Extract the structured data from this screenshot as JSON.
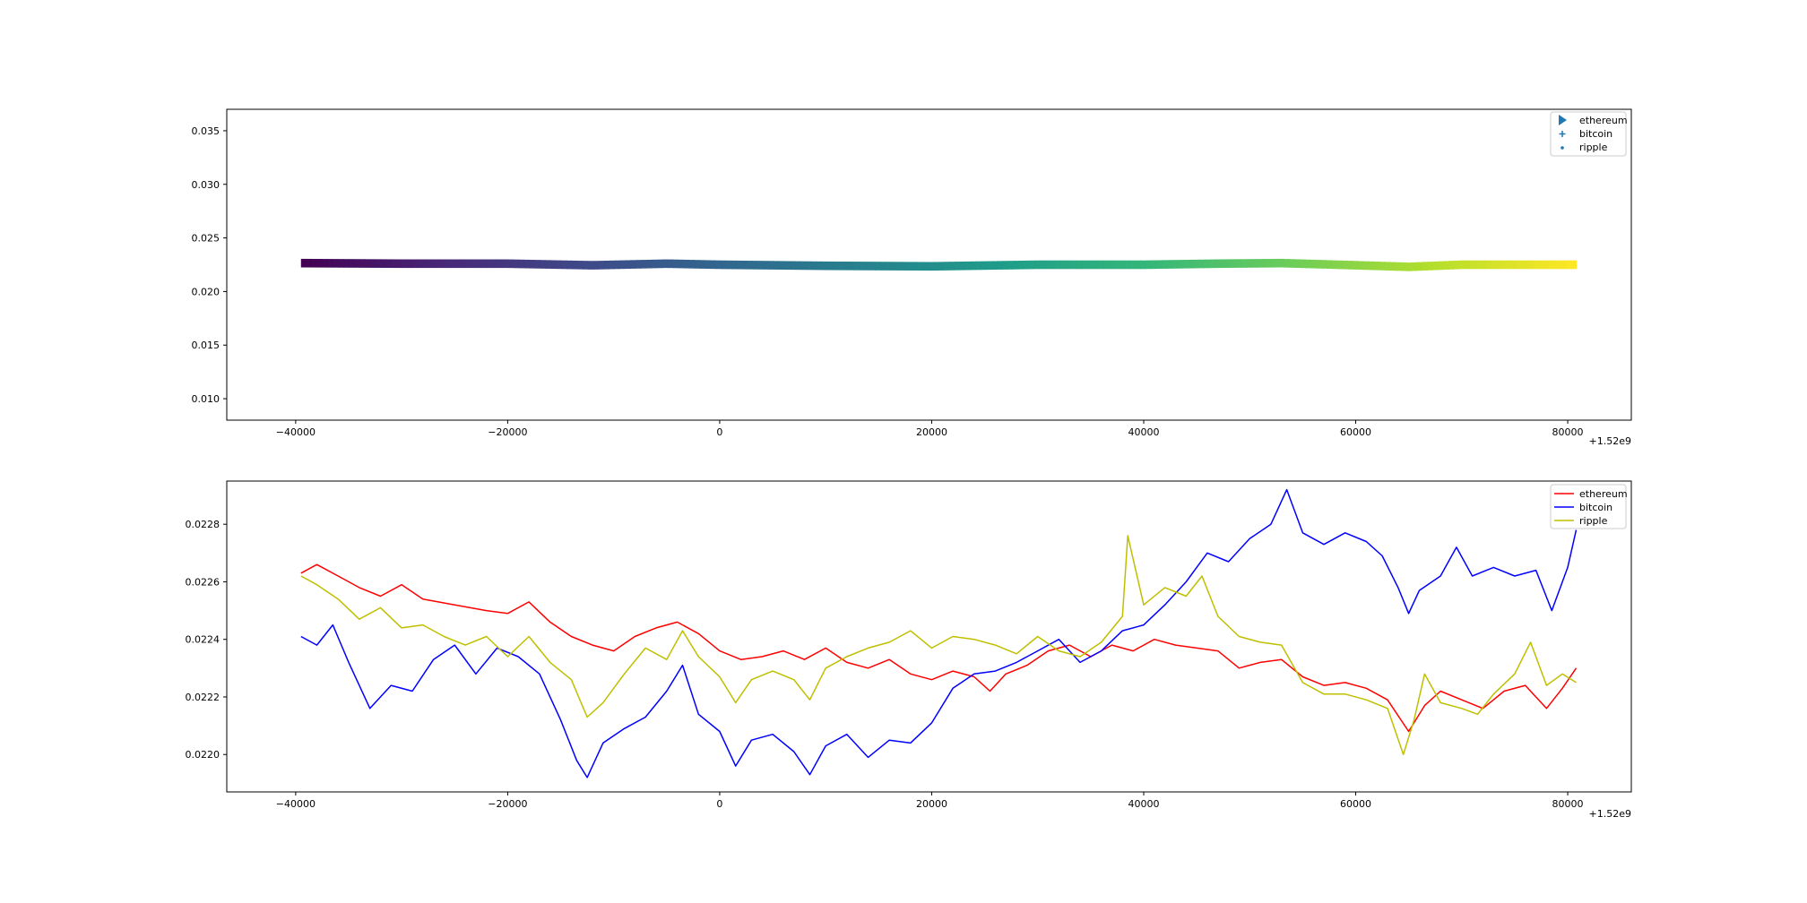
{
  "chart_data": [
    {
      "type": "scatter",
      "title": "",
      "xlabel": "",
      "ylabel": "",
      "x_offset_label": "+1.52e9",
      "xlim": [
        -46500,
        86000
      ],
      "ylim": [
        0.008,
        0.037
      ],
      "x_ticks": [
        -40000,
        -20000,
        0,
        20000,
        40000,
        60000,
        80000
      ],
      "x_tick_labels": [
        "−40000",
        "−20000",
        "0",
        "20000",
        "40000",
        "60000",
        "80000"
      ],
      "y_ticks": [
        0.01,
        0.015,
        0.02,
        0.025,
        0.03,
        0.035
      ],
      "y_tick_labels": [
        "0.010",
        "0.015",
        "0.020",
        "0.025",
        "0.030",
        "0.035"
      ],
      "grid": false,
      "legend_position": "top-right",
      "colormap": "viridis",
      "legend": [
        {
          "name": "ethereum",
          "marker": "triangle-right",
          "color": "#1f77b4"
        },
        {
          "name": "bitcoin",
          "marker": "plus",
          "color": "#1f77b4"
        },
        {
          "name": "ripple",
          "marker": "dot",
          "color": "#1f77b4"
        }
      ],
      "x_range": [
        -39500,
        80800
      ],
      "band_center": [
        [
          -39500,
          0.02265
        ],
        [
          -30000,
          0.0226
        ],
        [
          -20000,
          0.0226
        ],
        [
          -12000,
          0.02245
        ],
        [
          -5000,
          0.0226
        ],
        [
          0,
          0.0225
        ],
        [
          10000,
          0.0224
        ],
        [
          20000,
          0.02235
        ],
        [
          30000,
          0.0225
        ],
        [
          40000,
          0.0225
        ],
        [
          47000,
          0.0226
        ],
        [
          53000,
          0.02265
        ],
        [
          60000,
          0.02245
        ],
        [
          65000,
          0.0223
        ],
        [
          70000,
          0.0225
        ],
        [
          80800,
          0.0225
        ]
      ],
      "band_half_width": 0.0004
    },
    {
      "type": "line",
      "title": "",
      "xlabel": "",
      "ylabel": "",
      "x_offset_label": "+1.52e9",
      "xlim": [
        -46500,
        86000
      ],
      "ylim": [
        0.02187,
        0.02295
      ],
      "x_ticks": [
        -40000,
        -20000,
        0,
        20000,
        40000,
        60000,
        80000
      ],
      "x_tick_labels": [
        "−40000",
        "−20000",
        "0",
        "20000",
        "40000",
        "60000",
        "80000"
      ],
      "y_ticks": [
        0.022,
        0.0222,
        0.0224,
        0.0226,
        0.0228
      ],
      "y_tick_labels": [
        "0.0220",
        "0.0222",
        "0.0224",
        "0.0226",
        "0.0228"
      ],
      "grid": false,
      "legend_position": "top-right",
      "series": [
        {
          "name": "ethereum",
          "color": "#ff0000",
          "points": [
            [
              -39500,
              0.02263
            ],
            [
              -38000,
              0.02266
            ],
            [
              -36000,
              0.02262
            ],
            [
              -34000,
              0.02258
            ],
            [
              -32000,
              0.02255
            ],
            [
              -30000,
              0.02259
            ],
            [
              -28000,
              0.02254
            ],
            [
              -25000,
              0.02252
            ],
            [
              -22000,
              0.0225
            ],
            [
              -20000,
              0.02249
            ],
            [
              -18000,
              0.02253
            ],
            [
              -16000,
              0.02246
            ],
            [
              -14000,
              0.02241
            ],
            [
              -12000,
              0.02238
            ],
            [
              -10000,
              0.02236
            ],
            [
              -8000,
              0.02241
            ],
            [
              -6000,
              0.02244
            ],
            [
              -4000,
              0.02246
            ],
            [
              -2000,
              0.02242
            ],
            [
              0,
              0.02236
            ],
            [
              2000,
              0.02233
            ],
            [
              4000,
              0.02234
            ],
            [
              6000,
              0.02236
            ],
            [
              8000,
              0.02233
            ],
            [
              10000,
              0.02237
            ],
            [
              12000,
              0.02232
            ],
            [
              14000,
              0.0223
            ],
            [
              16000,
              0.02233
            ],
            [
              18000,
              0.02228
            ],
            [
              20000,
              0.02226
            ],
            [
              22000,
              0.02229
            ],
            [
              24000,
              0.02227
            ],
            [
              25500,
              0.02222
            ],
            [
              27000,
              0.02228
            ],
            [
              29000,
              0.02231
            ],
            [
              31000,
              0.02236
            ],
            [
              33000,
              0.02238
            ],
            [
              35000,
              0.02234
            ],
            [
              37000,
              0.02238
            ],
            [
              39000,
              0.02236
            ],
            [
              41000,
              0.0224
            ],
            [
              43000,
              0.02238
            ],
            [
              45000,
              0.02237
            ],
            [
              47000,
              0.02236
            ],
            [
              49000,
              0.0223
            ],
            [
              51000,
              0.02232
            ],
            [
              53000,
              0.02233
            ],
            [
              55000,
              0.02227
            ],
            [
              57000,
              0.02224
            ],
            [
              59000,
              0.02225
            ],
            [
              61000,
              0.02223
            ],
            [
              63000,
              0.02219
            ],
            [
              65000,
              0.02208
            ],
            [
              66500,
              0.02217
            ],
            [
              68000,
              0.02222
            ],
            [
              70000,
              0.02219
            ],
            [
              72000,
              0.02216
            ],
            [
              74000,
              0.02222
            ],
            [
              76000,
              0.02224
            ],
            [
              78000,
              0.02216
            ],
            [
              79500,
              0.02223
            ],
            [
              80800,
              0.0223
            ]
          ]
        },
        {
          "name": "bitcoin",
          "color": "#0000ff",
          "points": [
            [
              -39500,
              0.02241
            ],
            [
              -38000,
              0.02238
            ],
            [
              -36500,
              0.02245
            ],
            [
              -35000,
              0.02232
            ],
            [
              -33000,
              0.02216
            ],
            [
              -31000,
              0.02224
            ],
            [
              -29000,
              0.02222
            ],
            [
              -27000,
              0.02233
            ],
            [
              -25000,
              0.02238
            ],
            [
              -23000,
              0.02228
            ],
            [
              -21000,
              0.02237
            ],
            [
              -19000,
              0.02234
            ],
            [
              -17000,
              0.02228
            ],
            [
              -15000,
              0.02212
            ],
            [
              -13500,
              0.02198
            ],
            [
              -12500,
              0.02192
            ],
            [
              -11000,
              0.02204
            ],
            [
              -9000,
              0.02209
            ],
            [
              -7000,
              0.02213
            ],
            [
              -5000,
              0.02222
            ],
            [
              -3500,
              0.02231
            ],
            [
              -2000,
              0.02214
            ],
            [
              0,
              0.02208
            ],
            [
              1500,
              0.02196
            ],
            [
              3000,
              0.02205
            ],
            [
              5000,
              0.02207
            ],
            [
              7000,
              0.02201
            ],
            [
              8500,
              0.02193
            ],
            [
              10000,
              0.02203
            ],
            [
              12000,
              0.02207
            ],
            [
              14000,
              0.02199
            ],
            [
              16000,
              0.02205
            ],
            [
              18000,
              0.02204
            ],
            [
              20000,
              0.02211
            ],
            [
              22000,
              0.02223
            ],
            [
              24000,
              0.02228
            ],
            [
              26000,
              0.02229
            ],
            [
              28000,
              0.02232
            ],
            [
              30000,
              0.02236
            ],
            [
              32000,
              0.0224
            ],
            [
              34000,
              0.02232
            ],
            [
              36000,
              0.02236
            ],
            [
              38000,
              0.02243
            ],
            [
              40000,
              0.02245
            ],
            [
              42000,
              0.02252
            ],
            [
              44000,
              0.0226
            ],
            [
              46000,
              0.0227
            ],
            [
              48000,
              0.02267
            ],
            [
              50000,
              0.02275
            ],
            [
              52000,
              0.0228
            ],
            [
              53500,
              0.02292
            ],
            [
              55000,
              0.02277
            ],
            [
              57000,
              0.02273
            ],
            [
              59000,
              0.02277
            ],
            [
              61000,
              0.02274
            ],
            [
              62500,
              0.02269
            ],
            [
              64000,
              0.02258
            ],
            [
              65000,
              0.02249
            ],
            [
              66000,
              0.02257
            ],
            [
              68000,
              0.02262
            ],
            [
              69500,
              0.02272
            ],
            [
              71000,
              0.02262
            ],
            [
              73000,
              0.02265
            ],
            [
              75000,
              0.02262
            ],
            [
              77000,
              0.02264
            ],
            [
              78500,
              0.0225
            ],
            [
              80000,
              0.02265
            ],
            [
              80800,
              0.02278
            ]
          ]
        },
        {
          "name": "ripple",
          "color": "#bfbf00",
          "points": [
            [
              -39500,
              0.02262
            ],
            [
              -38000,
              0.02259
            ],
            [
              -36000,
              0.02254
            ],
            [
              -34000,
              0.02247
            ],
            [
              -32000,
              0.02251
            ],
            [
              -30000,
              0.02244
            ],
            [
              -28000,
              0.02245
            ],
            [
              -26000,
              0.02241
            ],
            [
              -24000,
              0.02238
            ],
            [
              -22000,
              0.02241
            ],
            [
              -20000,
              0.02234
            ],
            [
              -18000,
              0.02241
            ],
            [
              -16000,
              0.02232
            ],
            [
              -14000,
              0.02226
            ],
            [
              -12500,
              0.02213
            ],
            [
              -11000,
              0.02218
            ],
            [
              -9000,
              0.02228
            ],
            [
              -7000,
              0.02237
            ],
            [
              -5000,
              0.02233
            ],
            [
              -3500,
              0.02243
            ],
            [
              -2000,
              0.02234
            ],
            [
              0,
              0.02227
            ],
            [
              1500,
              0.02218
            ],
            [
              3000,
              0.02226
            ],
            [
              5000,
              0.02229
            ],
            [
              7000,
              0.02226
            ],
            [
              8500,
              0.02219
            ],
            [
              10000,
              0.0223
            ],
            [
              12000,
              0.02234
            ],
            [
              14000,
              0.02237
            ],
            [
              16000,
              0.02239
            ],
            [
              18000,
              0.02243
            ],
            [
              20000,
              0.02237
            ],
            [
              22000,
              0.02241
            ],
            [
              24000,
              0.0224
            ],
            [
              26000,
              0.02238
            ],
            [
              28000,
              0.02235
            ],
            [
              30000,
              0.02241
            ],
            [
              32000,
              0.02236
            ],
            [
              34000,
              0.02234
            ],
            [
              36000,
              0.02239
            ],
            [
              38000,
              0.02248
            ],
            [
              38500,
              0.02276
            ],
            [
              40000,
              0.02252
            ],
            [
              42000,
              0.02258
            ],
            [
              44000,
              0.02255
            ],
            [
              45500,
              0.02262
            ],
            [
              47000,
              0.02248
            ],
            [
              49000,
              0.02241
            ],
            [
              51000,
              0.02239
            ],
            [
              53000,
              0.02238
            ],
            [
              55000,
              0.02225
            ],
            [
              57000,
              0.02221
            ],
            [
              59000,
              0.02221
            ],
            [
              61000,
              0.02219
            ],
            [
              63000,
              0.02216
            ],
            [
              64500,
              0.022
            ],
            [
              65500,
              0.02212
            ],
            [
              66500,
              0.02228
            ],
            [
              68000,
              0.02218
            ],
            [
              70000,
              0.02216
            ],
            [
              71500,
              0.02214
            ],
            [
              73000,
              0.02221
            ],
            [
              75000,
              0.02228
            ],
            [
              76500,
              0.02239
            ],
            [
              78000,
              0.02224
            ],
            [
              79500,
              0.02228
            ],
            [
              80800,
              0.02225
            ]
          ]
        }
      ]
    }
  ]
}
